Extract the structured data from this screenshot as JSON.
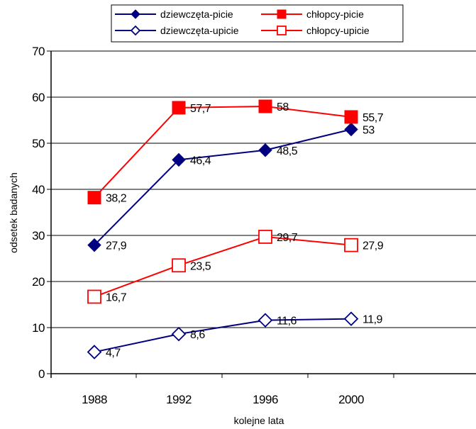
{
  "chart_data": {
    "type": "line",
    "xlabel": "kolejne lata",
    "ylabel": "odsetek badanych",
    "ylim": [
      0,
      70
    ],
    "yticks": [
      0,
      10,
      20,
      30,
      40,
      50,
      60,
      70
    ],
    "categories": [
      "1988",
      "1992",
      "1996",
      "2000"
    ],
    "grid": "horizontal",
    "legend_position": "top",
    "series": [
      {
        "name": "dziewczęta-picie",
        "values": [
          27.9,
          46.4,
          48.5,
          53
        ],
        "labels": [
          "27,9",
          "46,4",
          "48,5",
          "53"
        ],
        "color": "#000080",
        "marker": "diamond-filled"
      },
      {
        "name": "chłopcy-picie",
        "values": [
          38.2,
          57.7,
          58,
          55.7
        ],
        "labels": [
          "38,2",
          "57,7",
          "58",
          "55,7"
        ],
        "color": "#ff0000",
        "marker": "square-filled"
      },
      {
        "name": "dziewczęta-upicie",
        "values": [
          4.7,
          8.6,
          11.6,
          11.9
        ],
        "labels": [
          "4,7",
          "8,6",
          "11,6",
          "11,9"
        ],
        "color": "#000080",
        "marker": "diamond-open"
      },
      {
        "name": "chłopcy-upicie",
        "values": [
          16.7,
          23.5,
          29.7,
          27.9
        ],
        "labels": [
          "16,7",
          "23,5",
          "29,7",
          "27,9"
        ],
        "color": "#ff0000",
        "marker": "square-open"
      }
    ]
  }
}
